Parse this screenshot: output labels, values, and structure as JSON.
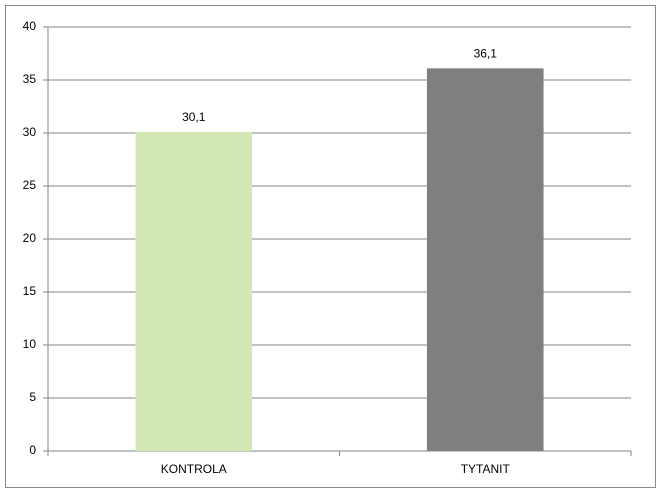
{
  "chart_data": {
    "type": "bar",
    "categories": [
      "KONTROLA",
      "TYTANIT"
    ],
    "values": [
      30.1,
      36.1
    ],
    "value_labels": [
      "30,1",
      "36,1"
    ],
    "colors": [
      "#d3e8b4",
      "#7f7f7f"
    ],
    "ylim": [
      0,
      40
    ],
    "yticks": [
      0,
      5,
      10,
      15,
      20,
      25,
      30,
      35,
      40
    ],
    "grid": true
  }
}
